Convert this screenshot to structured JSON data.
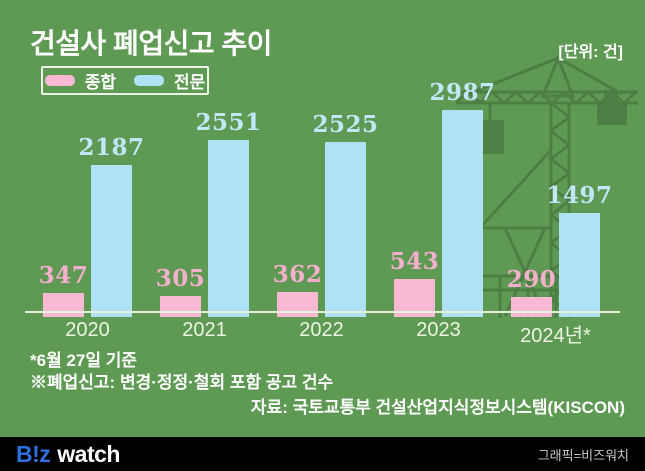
{
  "title": "건설사 폐업신고 추이",
  "unit_label": "[단위: 건]",
  "chart_data": {
    "type": "bar",
    "categories": [
      "2020",
      "2021",
      "2022",
      "2023",
      "2024년*"
    ],
    "series": [
      {
        "name": "종합",
        "key": "jonghap",
        "color": "#f9b9d3",
        "label_color": "#f6b0cd",
        "values": [
          347,
          305,
          362,
          543,
          290
        ]
      },
      {
        "name": "전문",
        "key": "jeonmun",
        "color": "#b0e2f6",
        "label_color": "#c2e8f8",
        "values": [
          2187,
          2551,
          2525,
          2987,
          1497
        ]
      }
    ],
    "title": "건설사 폐업신고 추이",
    "xlabel": "",
    "ylabel": "",
    "unit": "건",
    "ylim": [
      0,
      3200
    ],
    "grid": false,
    "legend_position": "top-left"
  },
  "footnotes": [
    "*6월 27일 기준",
    "※폐업신고: 변경·정정·철회 포함 공고 건수"
  ],
  "source": "자료: 국토교통부 건설산업지식정보시스템(KISCON)",
  "footer": {
    "logo_biz": "B!z",
    "logo_watch": "watch",
    "credit": "그래픽=비즈워치"
  },
  "colors": {
    "background": "#5f9a55",
    "watermark_green": "#4d7d43",
    "axis_line": "#e6f0d9",
    "year_label": "#edf4e1",
    "footer_bg": "#000000",
    "logo_blue": "#2f6fe0"
  }
}
